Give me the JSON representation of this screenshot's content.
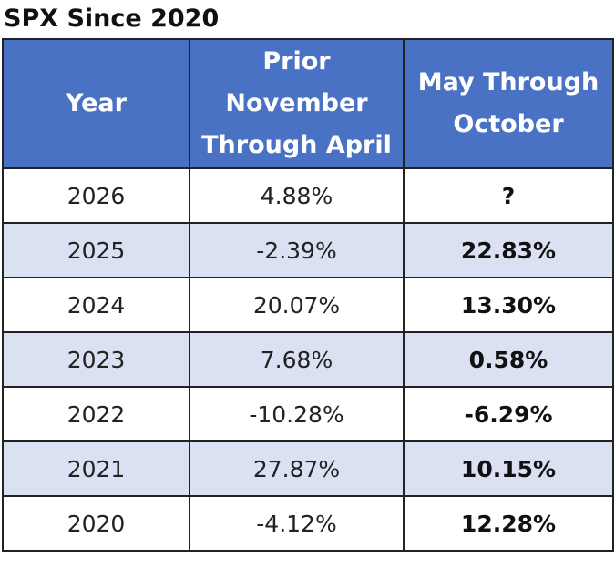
{
  "title": "SPX Since 2020",
  "table": {
    "header": [
      "Year",
      "Prior November Through April",
      "May Through October"
    ],
    "rows": [
      [
        "2026",
        "4.88%",
        "?"
      ],
      [
        "2025",
        "-2.39%",
        "22.83%"
      ],
      [
        "2024",
        "20.07%",
        "13.30%"
      ],
      [
        "2023",
        "7.68%",
        "0.58%"
      ],
      [
        "2022",
        "-10.28%",
        "-6.29%"
      ],
      [
        "2021",
        "27.87%",
        "10.15%"
      ],
      [
        "2020",
        "-4.12%",
        "12.28%"
      ]
    ]
  }
}
